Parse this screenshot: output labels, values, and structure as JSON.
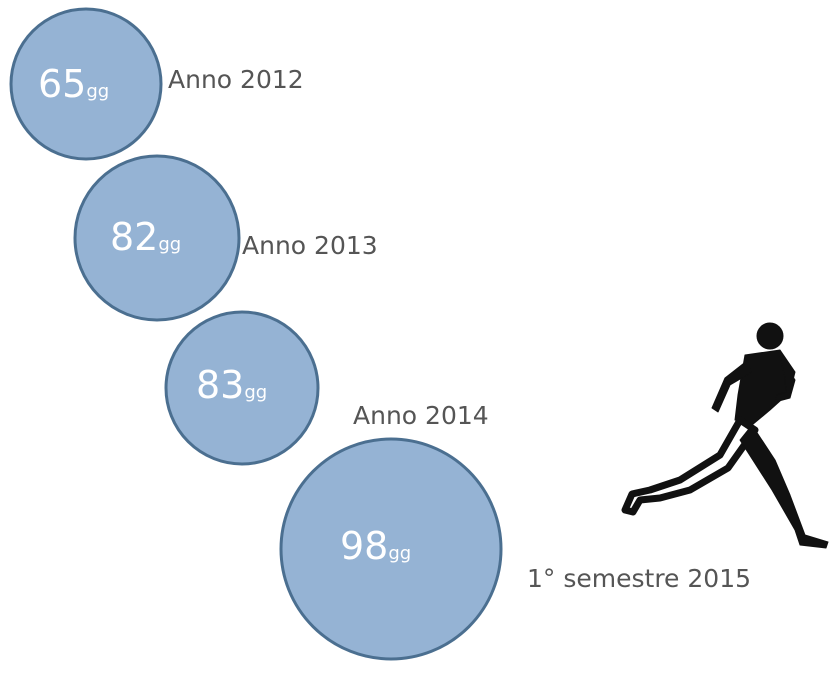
{
  "items": [
    {
      "value": "65",
      "unit": "gg",
      "label": "Anno 2012"
    },
    {
      "value": "82",
      "unit": "gg",
      "label": "Anno 2013"
    },
    {
      "value": "83",
      "unit": "gg",
      "label": "Anno 2014"
    },
    {
      "value": "98",
      "unit": "gg",
      "label": "1° semestre 2015"
    }
  ]
}
